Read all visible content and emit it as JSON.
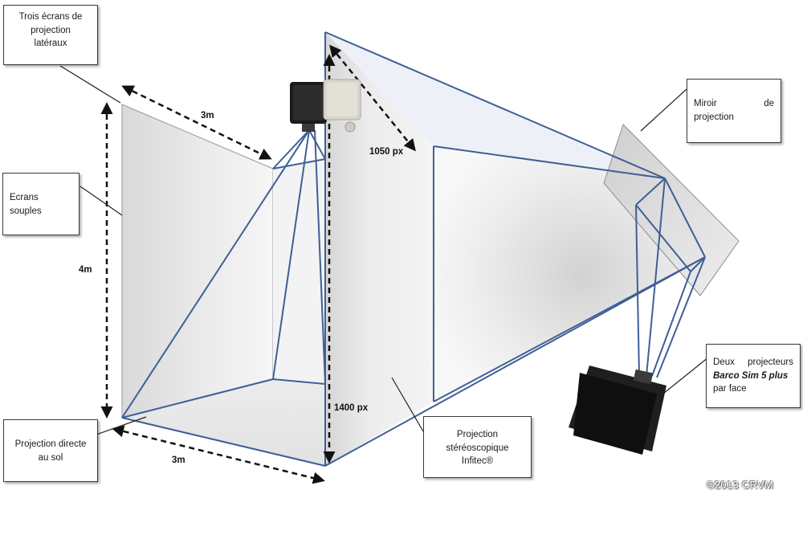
{
  "callouts": {
    "side_screens": [
      "Trois écrans de",
      "projection",
      "latéraux"
    ],
    "flexible_screens": [
      "Ecrans",
      "souples"
    ],
    "floor_projection": [
      "Projection directe",
      "au sol"
    ],
    "mirror": {
      "word1": "Miroir",
      "word2": "de",
      "word3": "projection"
    },
    "stereo": [
      "Projection",
      "stéréoscopique",
      "Infitec®"
    ],
    "projectors": {
      "line1_a": "Deux",
      "line1_b": "projecteurs",
      "line2": "Barco Sim 5 plus",
      "line3": "par face"
    }
  },
  "dimensions": {
    "width_top": "3m",
    "height": "4m",
    "width_bottom": "3m",
    "res_diag": "1050 px",
    "res_height": "1400 px"
  },
  "copyright": "©2013 CRVM",
  "colors": {
    "beam": "#3f5f95",
    "callout_border": "#3a3a3a"
  },
  "icons": [
    "projector-black-icon",
    "projector-gray-icon",
    "projector-black-pair-icon",
    "mirror-panel"
  ]
}
